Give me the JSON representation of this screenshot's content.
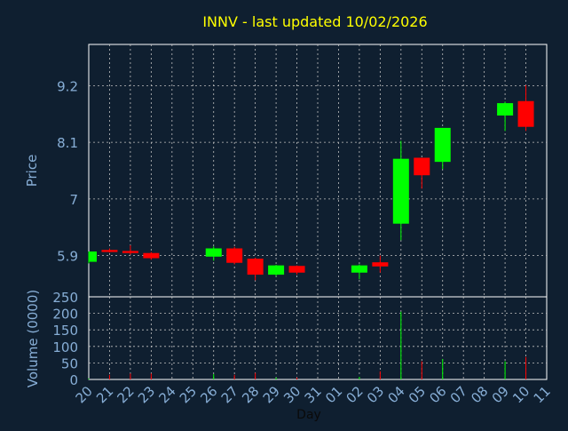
{
  "chart_data": [
    {
      "type": "candlestick",
      "title": "INNV - last updated 10/02/2026",
      "ylabel": "Price",
      "yticks": [
        5.9,
        7,
        8.1,
        9.2
      ],
      "ytick_labels": [
        "5.9",
        "7",
        "8.1",
        "9.2"
      ],
      "ylim": [
        5.1,
        10.0
      ],
      "grid": true,
      "colors": {
        "up": "#00ff00",
        "down": "#ff0000",
        "background": "#0f1f30",
        "grid": "#c0c0c0",
        "title": "#ffff00",
        "axis_text": "#87aed6"
      },
      "categories": [
        "20",
        "21",
        "22",
        "23",
        "24",
        "25",
        "26",
        "27",
        "28",
        "29",
        "30",
        "31",
        "01",
        "02",
        "03",
        "04",
        "05",
        "06",
        "07",
        "08",
        "09",
        "10",
        "11"
      ],
      "candles": [
        {
          "x": "20",
          "open": 5.78,
          "high": 5.98,
          "low": 5.75,
          "close": 5.98
        },
        {
          "x": "21",
          "open": 6.01,
          "high": 6.04,
          "low": 5.96,
          "close": 5.97
        },
        {
          "x": "22",
          "open": 5.99,
          "high": 6.1,
          "low": 5.92,
          "close": 5.95
        },
        {
          "x": "23",
          "open": 5.95,
          "high": 5.97,
          "low": 5.82,
          "close": 5.85
        },
        {
          "x": "26",
          "open": 5.88,
          "high": 6.08,
          "low": 5.8,
          "close": 6.04
        },
        {
          "x": "27",
          "open": 6.04,
          "high": 6.07,
          "low": 5.73,
          "close": 5.76
        },
        {
          "x": "28",
          "open": 5.84,
          "high": 5.86,
          "low": 5.42,
          "close": 5.53
        },
        {
          "x": "29",
          "open": 5.53,
          "high": 5.72,
          "low": 5.5,
          "close": 5.71
        },
        {
          "x": "30",
          "open": 5.7,
          "high": 5.71,
          "low": 5.53,
          "close": 5.57
        },
        {
          "x": "02",
          "open": 5.57,
          "high": 5.73,
          "low": 5.44,
          "close": 5.71
        },
        {
          "x": "03",
          "open": 5.77,
          "high": 5.9,
          "low": 5.57,
          "close": 5.69
        },
        {
          "x": "04",
          "open": 6.52,
          "high": 8.13,
          "low": 6.2,
          "close": 7.78
        },
        {
          "x": "05",
          "open": 7.8,
          "high": 7.8,
          "low": 7.2,
          "close": 7.46
        },
        {
          "x": "06",
          "open": 7.72,
          "high": 8.38,
          "low": 7.58,
          "close": 8.38
        },
        {
          "x": "09",
          "open": 8.62,
          "high": 8.89,
          "low": 8.32,
          "close": 8.86
        },
        {
          "x": "10",
          "open": 8.9,
          "high": 9.21,
          "low": 8.32,
          "close": 8.4
        }
      ]
    },
    {
      "type": "bar",
      "ylabel": "Volume (0000)",
      "xlabel": "Day",
      "yticks": [
        0,
        50,
        100,
        150,
        200,
        250
      ],
      "ytick_labels": [
        "0",
        "50",
        "100",
        "150",
        "200",
        "250"
      ],
      "ylim": [
        0,
        250
      ],
      "grid": true,
      "categories": [
        "20",
        "21",
        "22",
        "23",
        "24",
        "25",
        "26",
        "27",
        "28",
        "29",
        "30",
        "31",
        "01",
        "02",
        "03",
        "04",
        "05",
        "06",
        "07",
        "08",
        "09",
        "10",
        "11"
      ],
      "bars": [
        {
          "x": "20",
          "value": 3,
          "direction": "up"
        },
        {
          "x": "21",
          "value": 14,
          "direction": "down"
        },
        {
          "x": "22",
          "value": 18,
          "direction": "down"
        },
        {
          "x": "23",
          "value": 18,
          "direction": "down"
        },
        {
          "x": "26",
          "value": 16,
          "direction": "up"
        },
        {
          "x": "27",
          "value": 14,
          "direction": "down"
        },
        {
          "x": "28",
          "value": 20,
          "direction": "down"
        },
        {
          "x": "29",
          "value": 6,
          "direction": "up"
        },
        {
          "x": "30",
          "value": 6,
          "direction": "down"
        },
        {
          "x": "02",
          "value": 8,
          "direction": "up"
        },
        {
          "x": "03",
          "value": 25,
          "direction": "down"
        },
        {
          "x": "04",
          "value": 205,
          "direction": "up"
        },
        {
          "x": "05",
          "value": 55,
          "direction": "down"
        },
        {
          "x": "06",
          "value": 62,
          "direction": "up"
        },
        {
          "x": "09",
          "value": 55,
          "direction": "up"
        },
        {
          "x": "10",
          "value": 68,
          "direction": "down"
        }
      ]
    }
  ]
}
